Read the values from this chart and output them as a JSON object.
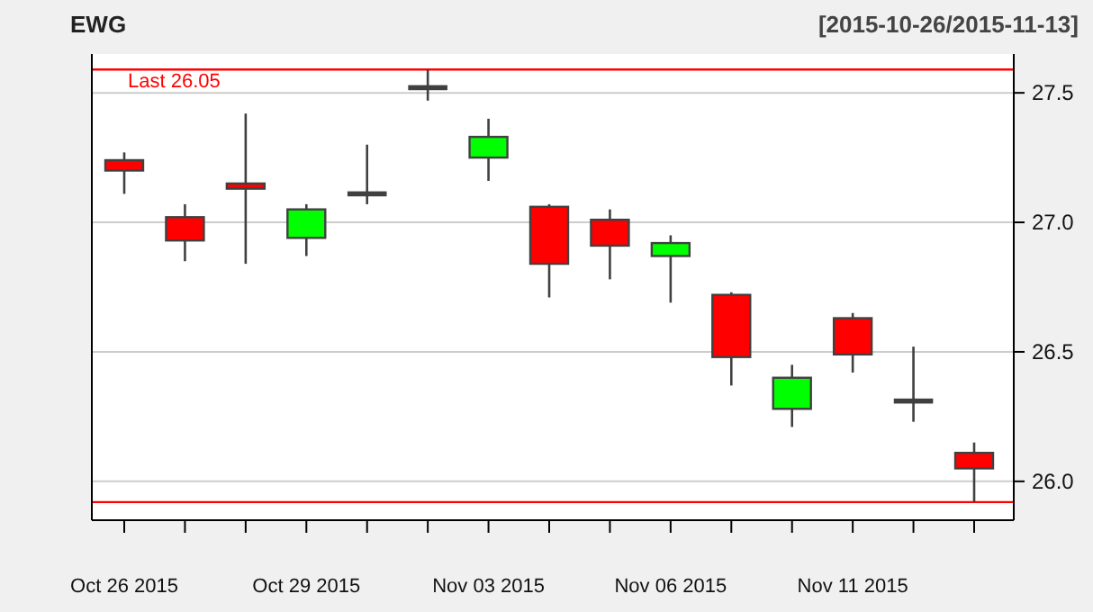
{
  "chart_data": {
    "type": "candlestick",
    "title": "EWG",
    "subtitle": "[2015-10-26/2015-11-13]",
    "categories": [
      "Oct 26 2015",
      null,
      null,
      "Oct 29 2015",
      null,
      null,
      "Nov 03 2015",
      null,
      null,
      "Nov 06 2015",
      null,
      null,
      "Nov 11 2015",
      null,
      null
    ],
    "ohlc": [
      [
        27.24,
        27.27,
        27.11,
        27.2
      ],
      [
        27.02,
        27.07,
        26.85,
        26.93
      ],
      [
        27.15,
        27.42,
        26.84,
        27.13
      ],
      [
        26.94,
        27.07,
        26.87,
        27.05
      ],
      [
        27.11,
        27.3,
        27.07,
        27.11
      ],
      [
        27.52,
        27.59,
        27.47,
        27.52
      ],
      [
        27.25,
        27.4,
        27.16,
        27.33
      ],
      [
        27.06,
        27.07,
        26.71,
        26.84
      ],
      [
        27.01,
        27.05,
        26.78,
        26.91
      ],
      [
        26.87,
        26.95,
        26.69,
        26.92
      ],
      [
        26.72,
        26.73,
        26.37,
        26.48
      ],
      [
        26.28,
        26.45,
        26.21,
        26.4
      ],
      [
        26.63,
        26.65,
        26.42,
        26.49
      ],
      [
        26.31,
        26.52,
        26.23,
        26.31
      ],
      [
        26.11,
        26.15,
        25.92,
        26.05
      ]
    ],
    "colors": [
      "#ff0000",
      "#ff0000",
      "#ff0000",
      "#00ff00",
      "#404040",
      "#404040",
      "#00ff00",
      "#ff0000",
      "#ff0000",
      "#00ff00",
      "#ff0000",
      "#00ff00",
      "#ff0000",
      "#404040",
      "#ff0000"
    ],
    "ylim": [
      25.85,
      27.65
    ],
    "yticks": [
      {
        "value": 26.0,
        "label": "26.0"
      },
      {
        "value": 26.5,
        "label": "26.5"
      },
      {
        "value": 27.0,
        "label": "27.0"
      },
      {
        "value": 27.5,
        "label": "27.5"
      }
    ],
    "grid": "y",
    "ref_lines": [
      {
        "axis": "y",
        "value": 27.59,
        "label": "Last 26.05",
        "color": "#ff0000"
      },
      {
        "axis": "y",
        "value": 25.92,
        "label": null,
        "color": "#ff0000"
      }
    ]
  }
}
